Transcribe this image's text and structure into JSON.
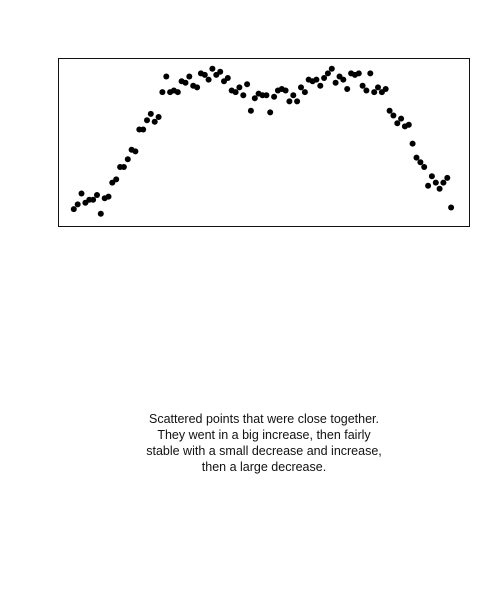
{
  "colors": {
    "background": "#ffffff",
    "frame": "#111111",
    "point": "#000000",
    "text": "#111111"
  },
  "chart_data": {
    "type": "scatter",
    "title": "",
    "xlabel": "",
    "ylabel": "",
    "axes_visible": false,
    "grid": false,
    "legend": "none",
    "xlim": [
      0,
      100
    ],
    "ylim": [
      0,
      100
    ],
    "series": [
      {
        "x": [
          1,
          2,
          3,
          4,
          5,
          6,
          7,
          8,
          9,
          10,
          11,
          12,
          13,
          14,
          15,
          16,
          17,
          18,
          19,
          20,
          21,
          22,
          23,
          24,
          25,
          26,
          27,
          28,
          29,
          30,
          31,
          32,
          33,
          34,
          35,
          36,
          37,
          38,
          39,
          40,
          41,
          42,
          43,
          44,
          45,
          46,
          47,
          48,
          49,
          50,
          51,
          52,
          53,
          54,
          55,
          56,
          57,
          58,
          59,
          60,
          61,
          62,
          63,
          64,
          65,
          66,
          67,
          68,
          69,
          70,
          71,
          72,
          73,
          74,
          75,
          76,
          77,
          78,
          79,
          80,
          81,
          82,
          83,
          84,
          85,
          86,
          87,
          88,
          89,
          90,
          91,
          92,
          93,
          94,
          95,
          96,
          97,
          98,
          99
        ],
        "y": [
          7,
          10,
          17,
          11,
          13,
          13,
          16,
          4,
          14,
          15,
          24,
          26,
          34,
          34,
          39,
          45,
          44,
          58,
          58,
          64,
          68,
          63,
          66,
          82,
          92,
          82,
          83,
          82,
          89,
          88,
          92,
          86,
          85,
          94,
          93,
          90,
          97,
          93,
          95,
          89,
          91,
          83,
          82,
          85,
          80,
          87,
          70,
          78,
          81,
          80,
          80,
          69,
          79,
          83,
          84,
          83,
          76,
          80,
          76,
          85,
          82,
          90,
          89,
          90,
          86,
          91,
          94,
          97,
          88,
          92,
          90,
          84,
          94,
          93,
          94,
          86,
          83,
          94,
          82,
          85,
          82,
          84,
          70,
          67,
          62,
          65,
          60,
          61,
          49,
          40,
          37,
          34,
          22,
          28,
          24,
          20,
          24,
          27,
          8
        ]
      }
    ]
  },
  "caption": {
    "line1": "Scattered points that were close together.",
    "line2": "They went in a big increase, then fairly",
    "line3": "stable with a small decrease and increase,",
    "line4": "then a large decrease."
  }
}
